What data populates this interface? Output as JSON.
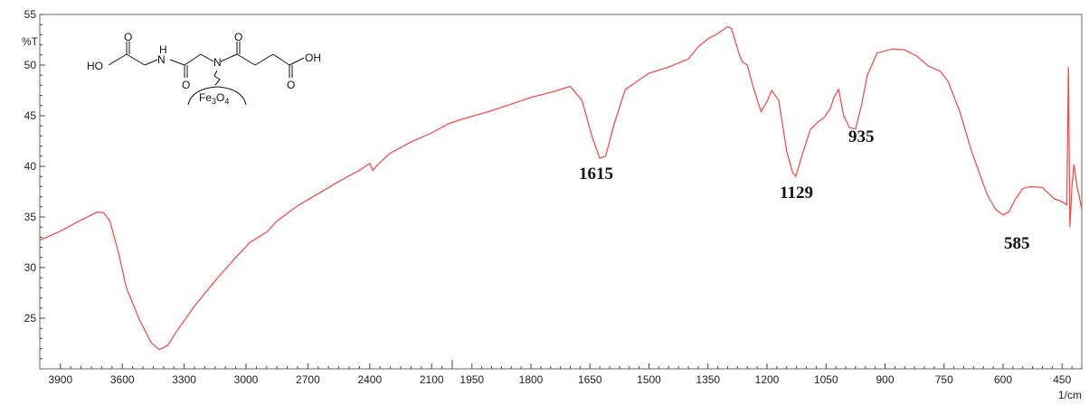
{
  "chart_data": {
    "type": "line",
    "title": "",
    "ylabel": "%T",
    "xlabel": "1/cm",
    "xlim": [
      4000,
      400
    ],
    "ylim": [
      20,
      55
    ],
    "x_scale": "split: linear 4000-2000 and 2000-400 at larger scale",
    "grid": false,
    "line_color": "#ff4040",
    "x_tick_labels_low_region": [
      "3900",
      "3600",
      "3300",
      "3000",
      "2700",
      "2400",
      "2100"
    ],
    "x_tick_labels_high_region": [
      "1950",
      "1800",
      "1650",
      "1500",
      "1350",
      "1200",
      "1050",
      "900",
      "750",
      "600",
      "450"
    ],
    "y_tick_labels": [
      "25",
      "30",
      "35",
      "40",
      "45",
      "50",
      "55"
    ],
    "series": [
      {
        "points": [
          [
            4000,
            32.7
          ],
          [
            3900,
            33.6
          ],
          [
            3800,
            34.7
          ],
          [
            3720,
            35.5
          ],
          [
            3690,
            35.4
          ],
          [
            3660,
            34.6
          ],
          [
            3620,
            31.6
          ],
          [
            3580,
            28.0
          ],
          [
            3520,
            25.0
          ],
          [
            3460,
            22.6
          ],
          [
            3420,
            21.9
          ],
          [
            3380,
            22.3
          ],
          [
            3340,
            23.6
          ],
          [
            3250,
            26.2
          ],
          [
            3150,
            28.7
          ],
          [
            3050,
            31.0
          ],
          [
            2980,
            32.5
          ],
          [
            2900,
            33.5
          ],
          [
            2850,
            34.6
          ],
          [
            2750,
            36.1
          ],
          [
            2650,
            37.3
          ],
          [
            2550,
            38.5
          ],
          [
            2450,
            39.6
          ],
          [
            2400,
            40.3
          ],
          [
            2385,
            39.6
          ],
          [
            2360,
            40.2
          ],
          [
            2300,
            41.3
          ],
          [
            2200,
            42.4
          ],
          [
            2100,
            43.3
          ],
          [
            2020,
            44.2
          ],
          [
            1980,
            44.6
          ],
          [
            1900,
            45.5
          ],
          [
            1800,
            46.8
          ],
          [
            1740,
            47.4
          ],
          [
            1700,
            47.9
          ],
          [
            1670,
            46.5
          ],
          [
            1645,
            43.0
          ],
          [
            1625,
            40.8
          ],
          [
            1610,
            41.0
          ],
          [
            1590,
            44.0
          ],
          [
            1560,
            47.6
          ],
          [
            1500,
            49.2
          ],
          [
            1450,
            49.8
          ],
          [
            1400,
            50.6
          ],
          [
            1375,
            51.8
          ],
          [
            1350,
            52.6
          ],
          [
            1330,
            53.0
          ],
          [
            1300,
            53.8
          ],
          [
            1290,
            53.6
          ],
          [
            1270,
            51.0
          ],
          [
            1262,
            50.3
          ],
          [
            1250,
            50.0
          ],
          [
            1235,
            47.8
          ],
          [
            1215,
            45.4
          ],
          [
            1200,
            46.4
          ],
          [
            1188,
            47.5
          ],
          [
            1170,
            46.5
          ],
          [
            1150,
            41.5
          ],
          [
            1135,
            39.4
          ],
          [
            1127,
            39.0
          ],
          [
            1110,
            41.2
          ],
          [
            1090,
            43.6
          ],
          [
            1070,
            44.4
          ],
          [
            1055,
            44.8
          ],
          [
            1045,
            45.4
          ],
          [
            1040,
            45.6
          ],
          [
            1030,
            46.8
          ],
          [
            1018,
            47.6
          ],
          [
            1005,
            45.0
          ],
          [
            990,
            43.8
          ],
          [
            975,
            43.7
          ],
          [
            960,
            46.0
          ],
          [
            945,
            49.0
          ],
          [
            920,
            51.2
          ],
          [
            880,
            51.6
          ],
          [
            850,
            51.5
          ],
          [
            820,
            50.9
          ],
          [
            790,
            49.9
          ],
          [
            760,
            49.4
          ],
          [
            740,
            48.4
          ],
          [
            710,
            45.4
          ],
          [
            680,
            41.5
          ],
          [
            660,
            39.3
          ],
          [
            640,
            37.2
          ],
          [
            620,
            35.8
          ],
          [
            600,
            35.2
          ],
          [
            585,
            35.5
          ],
          [
            570,
            36.7
          ],
          [
            550,
            37.8
          ],
          [
            530,
            38.0
          ],
          [
            500,
            37.9
          ],
          [
            470,
            36.8
          ],
          [
            450,
            36.5
          ],
          [
            438,
            36.2
          ],
          [
            434,
            49.8
          ],
          [
            430,
            34.0
          ],
          [
            425,
            38.0
          ],
          [
            420,
            40.2
          ],
          [
            412,
            38.0
          ],
          [
            400,
            35.8
          ]
        ]
      }
    ],
    "annotations": [
      "1615",
      "1129",
      "935",
      "585"
    ]
  },
  "molecule": {
    "atoms": [
      "HO",
      "O",
      "N",
      "H",
      "O",
      "N",
      "O",
      "O",
      "OH",
      "O"
    ],
    "support_label_main": "Fe",
    "support_label_sub1": "3",
    "support_label_mid": "O",
    "support_label_sub2": "4"
  }
}
